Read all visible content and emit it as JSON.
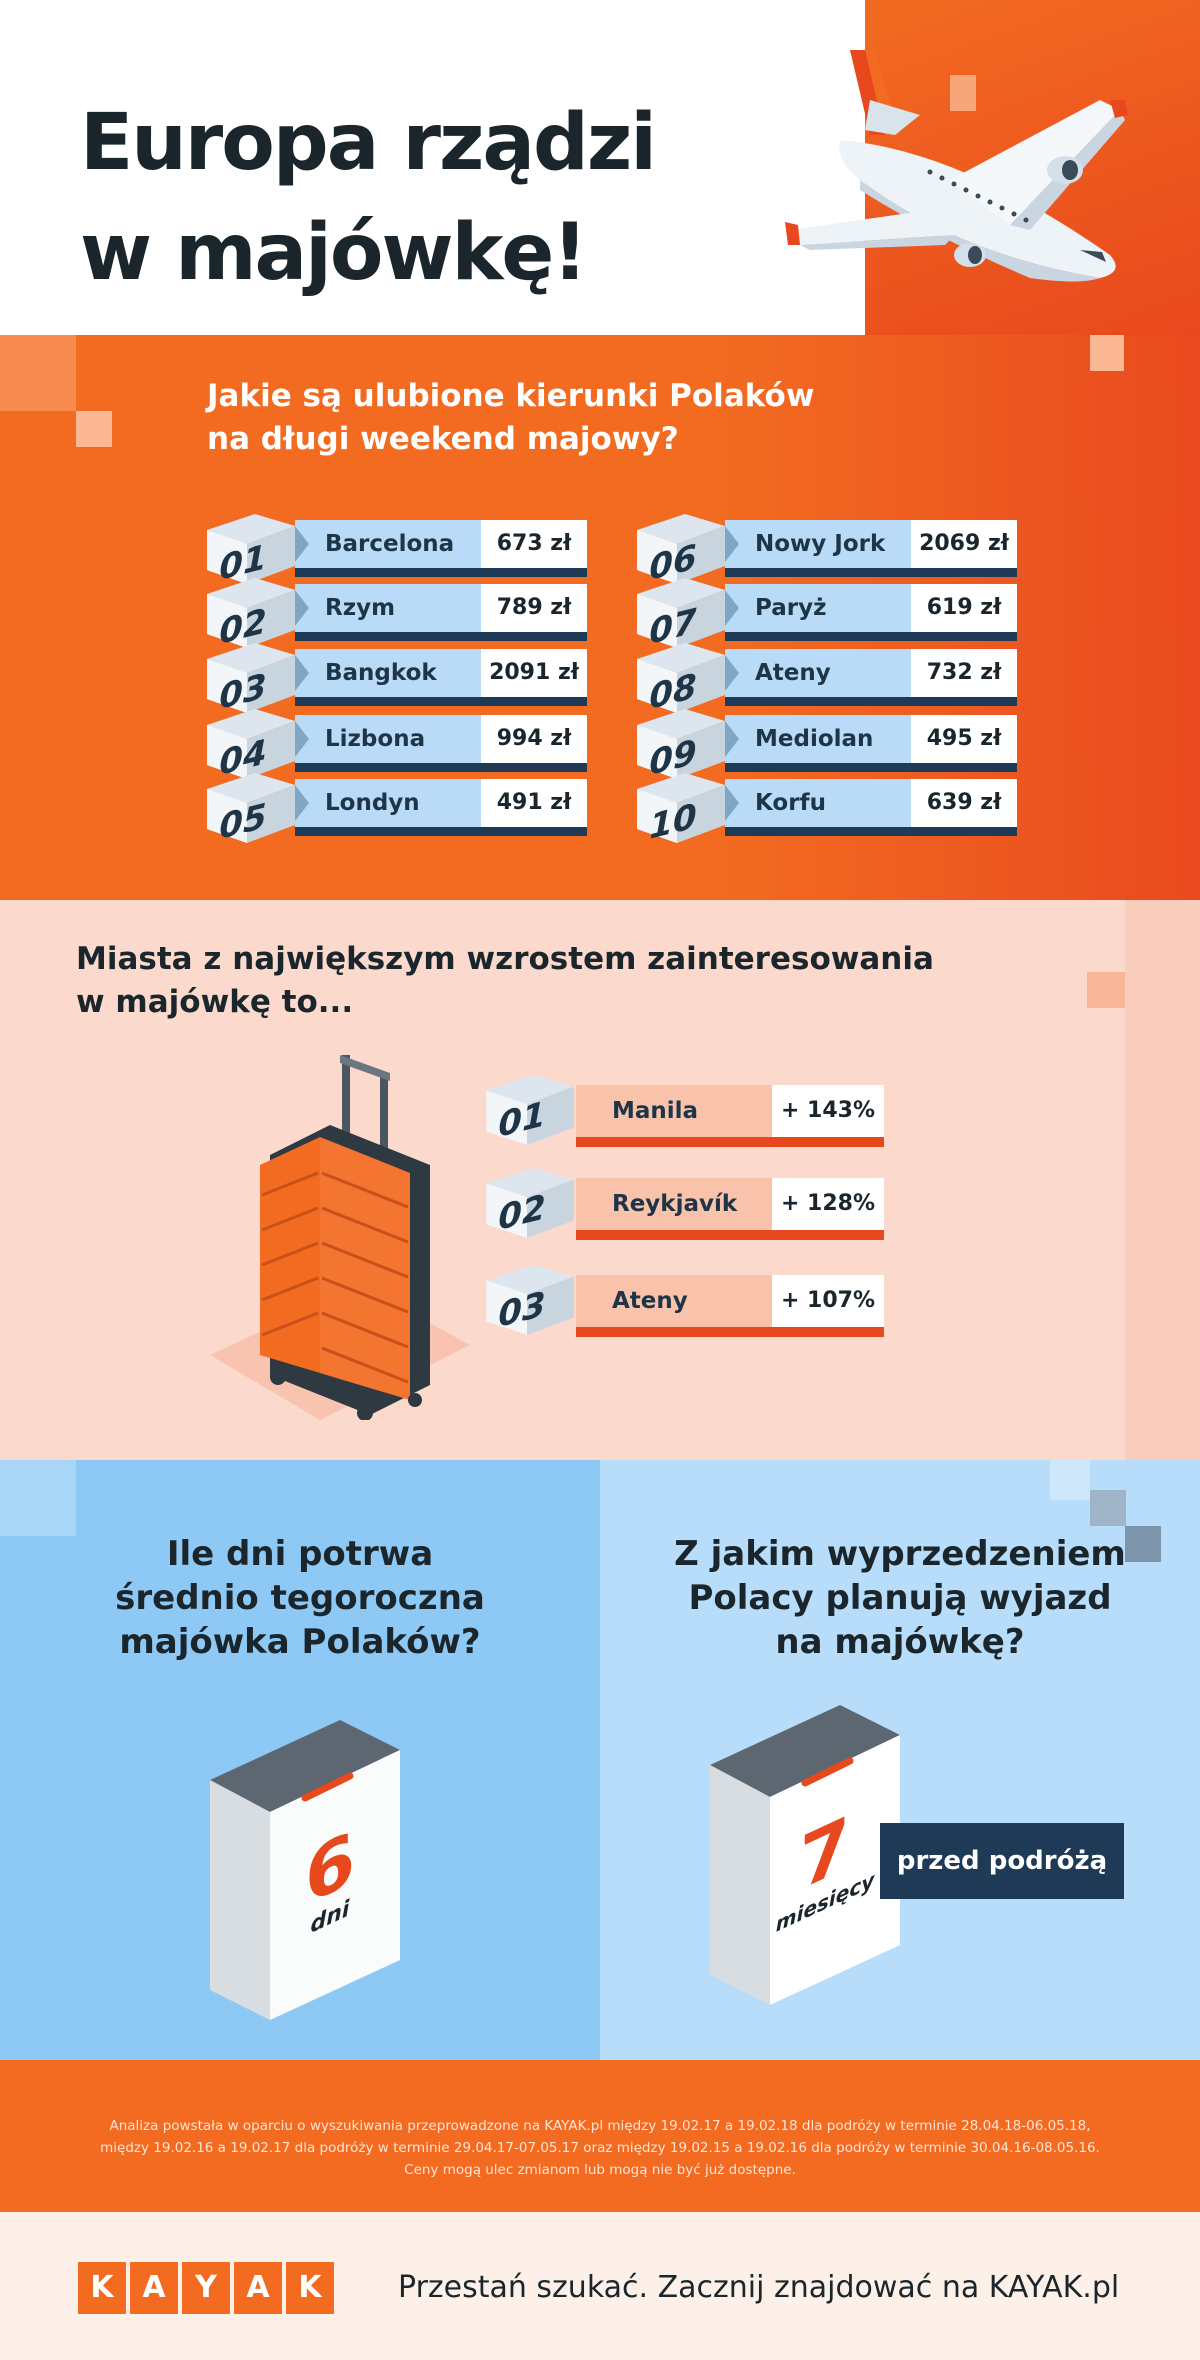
{
  "header": {
    "title_line1": "Europa rządzi",
    "title_line2": "w majówkę!"
  },
  "destinations": {
    "question_line1": "Jakie są ulubione kierunki Polaków",
    "question_line2": "na długi weekend majowy?",
    "items": [
      {
        "rank": "01",
        "city": "Barcelona",
        "price": "673 zł"
      },
      {
        "rank": "02",
        "city": "Rzym",
        "price": "789 zł"
      },
      {
        "rank": "03",
        "city": "Bangkok",
        "price": "2091 zł"
      },
      {
        "rank": "04",
        "city": "Lizbona",
        "price": "994 zł"
      },
      {
        "rank": "05",
        "city": "Londyn",
        "price": "491 zł"
      },
      {
        "rank": "06",
        "city": "Nowy Jork",
        "price": "2069 zł"
      },
      {
        "rank": "07",
        "city": "Paryż",
        "price": "619 zł"
      },
      {
        "rank": "08",
        "city": "Ateny",
        "price": "732 zł"
      },
      {
        "rank": "09",
        "city": "Mediolan",
        "price": "495 zł"
      },
      {
        "rank": "10",
        "city": "Korfu",
        "price": "639 zł"
      }
    ]
  },
  "growth": {
    "question_line1": "Miasta z największym wzrostem zainteresowania",
    "question_line2": "w majówkę to...",
    "items": [
      {
        "rank": "01",
        "city": "Manila",
        "value": "+ 143%"
      },
      {
        "rank": "02",
        "city": "Reykjavík",
        "value": "+ 128%"
      },
      {
        "rank": "03",
        "city": "Ateny",
        "value": "+ 107%"
      }
    ]
  },
  "duration": {
    "question_line1": "Ile dni potrwa",
    "question_line2": "średnio tegoroczna",
    "question_line3": "majówka Polaków?",
    "number": "6",
    "unit": "dni"
  },
  "advance": {
    "question_line1": "Z jakim wyprzedzeniem",
    "question_line2": "Polacy planują wyjazd",
    "question_line3": "na majówkę?",
    "number": "7",
    "unit": "miesięcy",
    "suffix": "przed podróżą"
  },
  "footnote": {
    "line1": "Analiza powstała w oparciu o wyszukiwania przeprowadzone na KAYAK.pl między 19.02.17 a 19.02.18 dla podróży w terminie 28.04.18-06.05.18,",
    "line2": "między 19.02.16 a 19.02.17 dla podróży w terminie 29.04.17-07.05.17 oraz między 19.02.15 a 19.02.16 dla podróży w terminie 30.04.16-08.05.16.",
    "line3": "Ceny mogą ulec zmianom lub mogą nie być już dostępne."
  },
  "brand": {
    "letters": [
      "K",
      "A",
      "Y",
      "A",
      "K"
    ],
    "tagline": "Przestań szukać. Zacznij znajdować na KAYAK.pl",
    "color": "#f26b21"
  }
}
